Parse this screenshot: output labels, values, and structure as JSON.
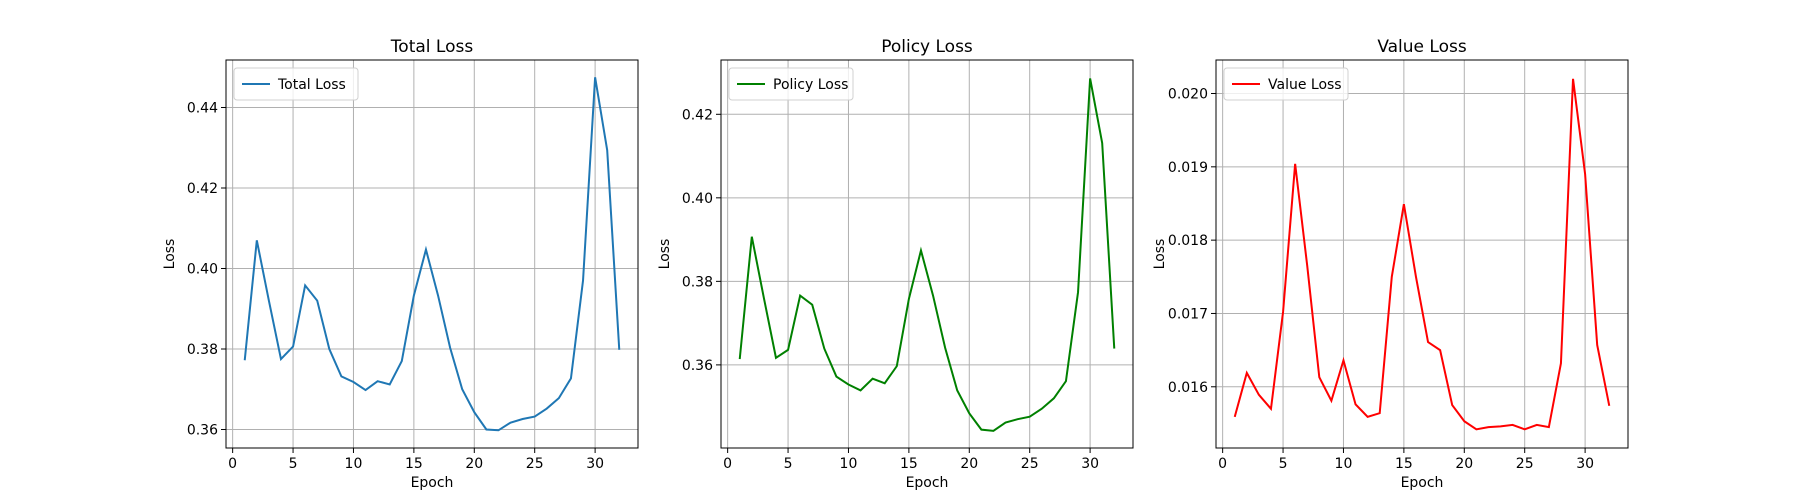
{
  "chart_data": [
    {
      "type": "line",
      "title": "Total Loss",
      "xlabel": "Epoch",
      "ylabel": "Loss",
      "x": [
        1,
        2,
        3,
        4,
        5,
        6,
        7,
        8,
        9,
        10,
        11,
        12,
        13,
        14,
        15,
        16,
        17,
        18,
        19,
        20,
        21,
        22,
        23,
        24,
        25,
        26,
        27,
        28,
        29,
        30,
        31,
        32
      ],
      "series": [
        {
          "name": "Total Loss",
          "color": "#1f77b4",
          "values": [
            0.3772,
            0.407,
            0.392,
            0.3775,
            0.3806,
            0.3958,
            0.392,
            0.38,
            0.3732,
            0.3718,
            0.3698,
            0.372,
            0.3712,
            0.377,
            0.3933,
            0.4047,
            0.3933,
            0.3803,
            0.37,
            0.3643,
            0.36,
            0.3598,
            0.3617,
            0.3626,
            0.3632,
            0.3652,
            0.3678,
            0.3727,
            0.397,
            0.4475,
            0.4294,
            0.3798
          ]
        }
      ],
      "xlim": [
        -0.55,
        33.55
      ],
      "ylim": [
        0.3554,
        0.4518
      ],
      "xticks": [
        0,
        5,
        10,
        15,
        20,
        25,
        30
      ],
      "yticks": [
        0.36,
        0.38,
        {
          "value": 0.4,
          "label": "0.40"
        },
        0.42,
        0.44
      ],
      "grid": true,
      "legend": "upper left"
    },
    {
      "type": "line",
      "title": "Policy Loss",
      "xlabel": "Epoch",
      "ylabel": "Loss",
      "x": [
        1,
        2,
        3,
        4,
        5,
        6,
        7,
        8,
        9,
        10,
        11,
        12,
        13,
        14,
        15,
        16,
        17,
        18,
        19,
        20,
        21,
        22,
        23,
        24,
        25,
        26,
        27,
        28,
        29,
        30,
        31,
        32
      ],
      "series": [
        {
          "name": "Policy Loss",
          "color": "#008000",
          "values": [
            0.3614,
            0.3907,
            0.376,
            0.3617,
            0.3636,
            0.3766,
            0.3744,
            0.3639,
            0.3572,
            0.3553,
            0.3539,
            0.3567,
            0.3556,
            0.3597,
            0.3758,
            0.3874,
            0.3766,
            0.3641,
            0.3539,
            0.3484,
            0.3445,
            0.3442,
            0.3462,
            0.347,
            0.3476,
            0.3495,
            0.352,
            0.3561,
            0.3774,
            0.4286,
            0.4131,
            0.3639
          ]
        }
      ],
      "xlim": [
        -0.55,
        33.55
      ],
      "ylim": [
        0.3401,
        0.433
      ],
      "xticks": [
        0,
        5,
        10,
        15,
        20,
        25,
        30
      ],
      "yticks": [
        0.36,
        0.38,
        {
          "value": 0.4,
          "label": "0.40"
        },
        0.42
      ],
      "grid": true,
      "legend": "upper left"
    },
    {
      "type": "line",
      "title": "Value Loss",
      "xlabel": "Epoch",
      "ylabel": "Loss",
      "x": [
        1,
        2,
        3,
        4,
        5,
        6,
        7,
        8,
        9,
        10,
        11,
        12,
        13,
        14,
        15,
        16,
        17,
        18,
        19,
        20,
        21,
        22,
        23,
        24,
        25,
        26,
        27,
        28,
        29,
        30,
        31,
        32
      ],
      "series": [
        {
          "name": "Value Loss",
          "color": "#ff0000",
          "values": [
            0.01559,
            0.01619,
            0.01589,
            0.0157,
            0.01702,
            0.01904,
            0.01765,
            0.01613,
            0.01581,
            0.01636,
            0.01576,
            0.01559,
            0.01564,
            0.0175,
            0.01849,
            0.0175,
            0.01661,
            0.0165,
            0.01575,
            0.01553,
            0.01542,
            0.01545,
            0.01546,
            0.01548,
            0.01542,
            0.01548,
            0.01545,
            0.01632,
            0.0202,
            0.0189,
            0.01657,
            0.01574
          ]
        }
      ],
      "xlim": [
        -0.55,
        33.55
      ],
      "ylim": [
        0.015165,
        0.020457
      ],
      "xticks": [
        0,
        5,
        10,
        15,
        20,
        25,
        30
      ],
      "yticks": [
        0.016,
        0.017,
        0.018,
        0.019,
        {
          "value": 0.02,
          "label": "0.020"
        }
      ],
      "grid": true,
      "legend": "upper left"
    }
  ]
}
